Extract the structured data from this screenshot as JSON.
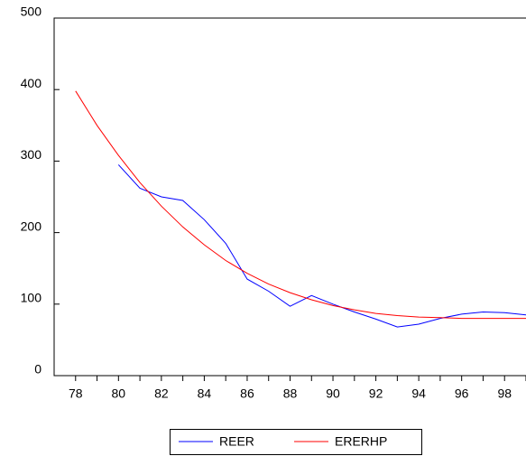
{
  "chart_data": {
    "type": "line",
    "x": [
      78,
      79,
      80,
      81,
      82,
      83,
      84,
      85,
      86,
      87,
      88,
      89,
      90,
      91,
      92,
      93,
      94,
      95,
      96,
      97,
      98,
      99
    ],
    "series": [
      {
        "name": "REER",
        "color": "#0000ff",
        "values": [
          null,
          null,
          295,
          262,
          250,
          245,
          218,
          185,
          135,
          118,
          97,
          112,
          100,
          89,
          79,
          68,
          72,
          80,
          86,
          89,
          88,
          85
        ]
      },
      {
        "name": "ERERHP",
        "color": "#ff0000",
        "values": [
          398,
          350,
          308,
          270,
          237,
          208,
          183,
          161,
          143,
          128,
          116,
          106,
          98,
          92,
          87,
          84,
          82,
          81,
          80,
          80,
          80,
          80
        ]
      }
    ],
    "xlim": [
      77,
      99
    ],
    "xticks": [
      78,
      80,
      82,
      84,
      86,
      88,
      90,
      92,
      94,
      96,
      98
    ],
    "ylim": [
      0,
      500
    ],
    "yticks": [
      0,
      100,
      200,
      300,
      400,
      500
    ],
    "legend": "bottom"
  }
}
